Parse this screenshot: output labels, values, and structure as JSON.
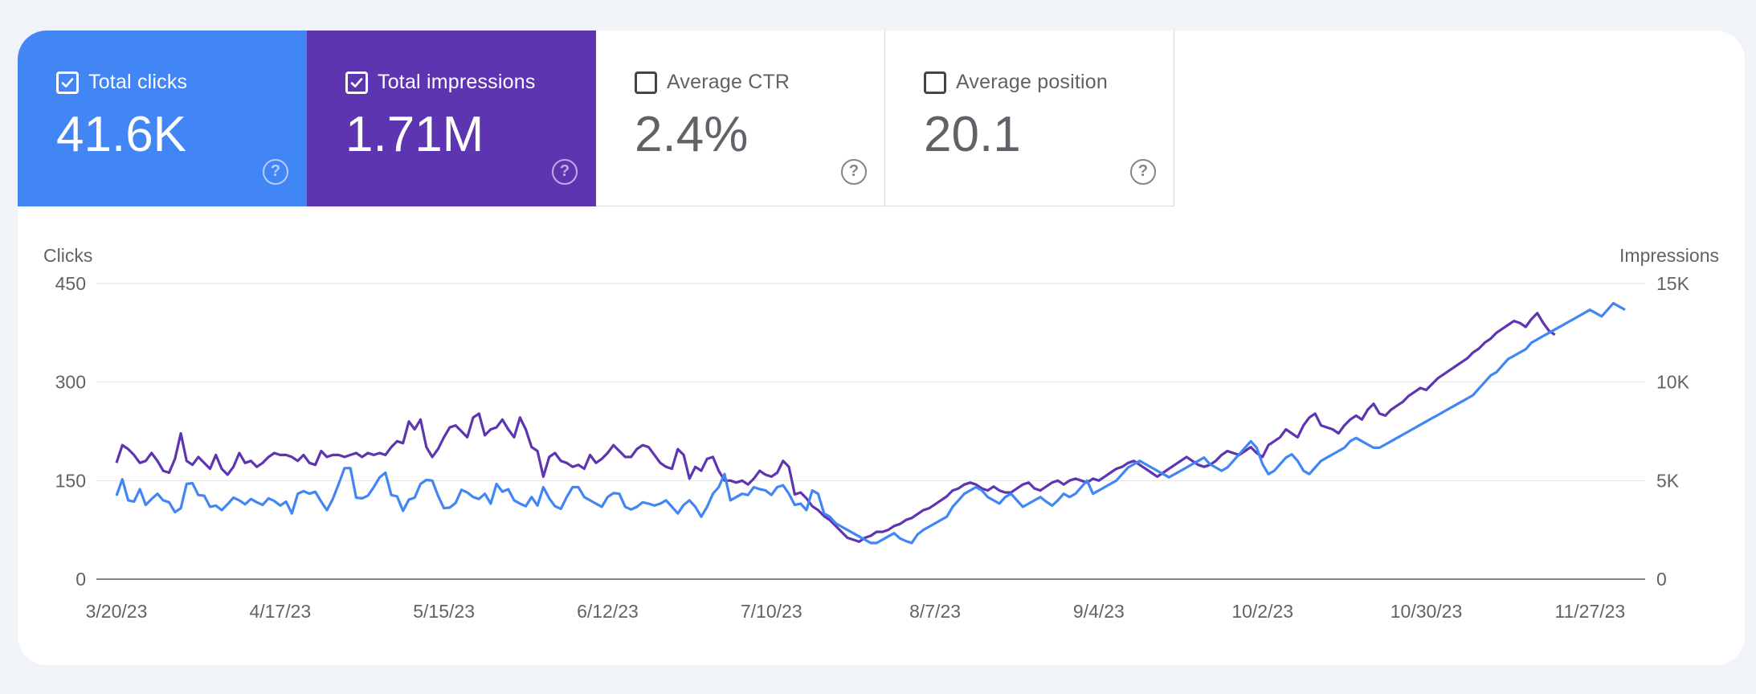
{
  "metrics": [
    {
      "label": "Total clicks",
      "value": "41.6K",
      "checked": true,
      "color": "#4285f4"
    },
    {
      "label": "Total impressions",
      "value": "1.71M",
      "checked": true,
      "color": "#5e35b1"
    },
    {
      "label": "Average CTR",
      "value": "2.4%",
      "checked": false,
      "color": "#ffffff"
    },
    {
      "label": "Average position",
      "value": "20.1",
      "checked": false,
      "color": "#ffffff"
    }
  ],
  "help_glyph": "?",
  "chart_data": {
    "type": "line",
    "left_axis_title": "Clicks",
    "right_axis_title": "Impressions",
    "left_ticks": [
      "0",
      "150",
      "300",
      "450"
    ],
    "right_ticks": [
      "0",
      "5K",
      "10K",
      "15K"
    ],
    "ylim_left": [
      0,
      450
    ],
    "ylim_right": [
      0,
      15000
    ],
    "x_tick_labels": [
      "3/20/23",
      "4/17/23",
      "5/15/23",
      "6/12/23",
      "7/10/23",
      "8/7/23",
      "9/4/23",
      "10/2/23",
      "10/30/23",
      "11/27/23"
    ],
    "x_tick_days": [
      0,
      28,
      56,
      84,
      112,
      140,
      168,
      196,
      224,
      252
    ],
    "grid": true,
    "series": [
      {
        "name": "Total clicks",
        "axis": "left",
        "color": "#4285f4",
        "values": [
          127,
          152,
          120,
          118,
          137,
          113,
          122,
          130,
          120,
          117,
          102,
          108,
          145,
          146,
          128,
          127,
          110,
          112,
          105,
          114,
          124,
          120,
          114,
          122,
          117,
          113,
          123,
          119,
          112,
          118,
          100,
          130,
          134,
          130,
          133,
          118,
          105,
          122,
          145,
          169,
          169,
          124,
          123,
          127,
          140,
          155,
          162,
          128,
          126,
          104,
          121,
          124,
          145,
          151,
          150,
          127,
          108,
          109,
          116,
          136,
          132,
          125,
          122,
          130,
          115,
          145,
          133,
          137,
          120,
          115,
          111,
          125,
          112,
          140,
          123,
          111,
          107,
          125,
          140,
          140,
          125,
          120,
          115,
          110,
          125,
          131,
          130,
          110,
          106,
          110,
          117,
          115,
          112,
          115,
          120,
          110,
          100,
          113,
          120,
          110,
          95,
          110,
          130,
          140,
          160,
          120,
          125,
          130,
          128,
          140,
          137,
          135,
          128,
          140,
          143,
          130,
          113,
          115,
          105,
          135,
          130,
          100,
          95,
          85,
          80,
          75,
          70,
          65,
          60,
          55,
          55,
          60,
          65,
          70,
          62,
          58,
          55,
          68,
          75,
          80,
          85,
          90,
          95,
          110,
          120,
          130,
          135,
          140,
          135,
          125,
          120,
          115,
          125,
          130,
          120,
          110,
          115,
          120,
          125,
          118,
          112,
          120,
          130,
          125,
          130,
          140,
          150,
          130,
          135,
          140,
          145,
          150,
          160,
          170,
          175,
          180,
          175,
          170,
          165,
          160,
          155,
          160,
          165,
          170,
          175,
          180,
          185,
          175,
          170,
          165,
          170,
          180,
          190,
          200,
          210,
          200,
          175,
          160,
          165,
          175,
          185,
          190,
          180,
          165,
          160,
          170,
          180,
          185,
          190,
          195,
          200,
          210,
          215,
          210,
          205,
          200,
          200,
          205,
          210,
          215,
          220,
          225,
          230,
          235,
          240,
          245,
          250,
          255,
          260,
          265,
          270,
          275,
          280,
          290,
          300,
          310,
          315,
          325,
          335,
          340,
          345,
          350,
          360,
          365,
          370,
          375,
          380,
          385,
          390,
          395,
          400,
          405,
          410,
          405,
          400,
          410,
          420,
          415,
          410
        ],
        "display_values": [
          127,
          152,
          120,
          118,
          137,
          113,
          122,
          130,
          120,
          117,
          102,
          108,
          145,
          146,
          128,
          127,
          110,
          112,
          105,
          114,
          124,
          120,
          114,
          122,
          117,
          113,
          123,
          119,
          112,
          118,
          100,
          130,
          134,
          130,
          133,
          118,
          105,
          122,
          145,
          169,
          169,
          124,
          123,
          127,
          140,
          155,
          162,
          128,
          126,
          104,
          121,
          124,
          145,
          151,
          150,
          127,
          108,
          109,
          116,
          136,
          132,
          125,
          122,
          130,
          115,
          145,
          133,
          137,
          120,
          115,
          111,
          125,
          112,
          140,
          123,
          111,
          107,
          125,
          140,
          140,
          125,
          120,
          115,
          110,
          125,
          131,
          130,
          110,
          106,
          110,
          117,
          115,
          112,
          115,
          120,
          110,
          100,
          113,
          120,
          110,
          95,
          110,
          130,
          140,
          160,
          120,
          125,
          130,
          128,
          140,
          137,
          135,
          128,
          140,
          143,
          130,
          113,
          115,
          105,
          135,
          130,
          100,
          95,
          85,
          80,
          75,
          70,
          65,
          60,
          55,
          55,
          60,
          65,
          70,
          62,
          58,
          55,
          68,
          75,
          80,
          85,
          90,
          95,
          110,
          120,
          130,
          135,
          140,
          135,
          125,
          120,
          115,
          125,
          130,
          120,
          110,
          115,
          120,
          125,
          118,
          112,
          120,
          130,
          125,
          130,
          140,
          150,
          130,
          135,
          140,
          145,
          150,
          160,
          170,
          175,
          180,
          175,
          170,
          165,
          160,
          155,
          160,
          165,
          170,
          175,
          180,
          185,
          175,
          170,
          165,
          170,
          180,
          190,
          200,
          210,
          200,
          175,
          160,
          165,
          175,
          185,
          190,
          180,
          165,
          160,
          170,
          180,
          185,
          190,
          195,
          200,
          210,
          215,
          210,
          205,
          200,
          200,
          205,
          210,
          215,
          220,
          225,
          230,
          235,
          240,
          245,
          250,
          255,
          260,
          265,
          270,
          275,
          280,
          290,
          300,
          310,
          315,
          325,
          335,
          340,
          345,
          350,
          360,
          365,
          370,
          375,
          380,
          385,
          390,
          395,
          400,
          405,
          410,
          405,
          400,
          410,
          420,
          415,
          410
        ]
      },
      {
        "name": "Total impressions",
        "axis": "right",
        "color": "#5e35b1",
        "values": [
          5900,
          6800,
          6600,
          6300,
          5900,
          6000,
          6400,
          6000,
          5500,
          5400,
          6100,
          7400,
          6000,
          5800,
          6200,
          5900,
          5600,
          6300,
          5600,
          5300,
          5700,
          6400,
          5900,
          6000,
          5700,
          5900,
          6200,
          6400,
          6300,
          6300,
          6200,
          6000,
          6300,
          5900,
          5800,
          6500,
          6200,
          6300,
          6300,
          6200,
          6300,
          6400,
          6200,
          6400,
          6300,
          6400,
          6300,
          6700,
          7000,
          6900,
          8000,
          7600,
          8100,
          6700,
          6200,
          6600,
          7200,
          7700,
          7800,
          7500,
          7200,
          8200,
          8400,
          7300,
          7600,
          7700,
          8100,
          7600,
          7200,
          8200,
          7600,
          6700,
          6500,
          5200,
          6200,
          6400,
          6000,
          5900,
          5700,
          5800,
          5600,
          6300,
          5900,
          6100,
          6400,
          6800,
          6500,
          6200,
          6200,
          6600,
          6800,
          6700,
          6300,
          5900,
          5700,
          5600,
          6600,
          6300,
          5100,
          5700,
          5500,
          6100,
          6200,
          5500,
          5000,
          5000,
          4900,
          5000,
          4800,
          5100,
          5500,
          5300,
          5200,
          5400,
          6000,
          5700,
          4300,
          4400,
          4100,
          3700,
          3500,
          3200,
          3000,
          2700,
          2400,
          2100,
          2000,
          1900,
          2100,
          2200,
          2400,
          2400,
          2500,
          2700,
          2800,
          3000,
          3100,
          3300,
          3500,
          3600,
          3800,
          4000,
          4200,
          4500,
          4600,
          4800,
          4900,
          4800,
          4600,
          4500,
          4700,
          4500,
          4400,
          4400,
          4600,
          4800,
          4900,
          4600,
          4500,
          4700,
          4900,
          5000,
          4800,
          5000,
          5100,
          5000,
          4900,
          5100,
          5000,
          5200,
          5400,
          5600,
          5700,
          5900,
          6000,
          5800,
          5600,
          5400,
          5200,
          5400,
          5600,
          5800,
          6000,
          6200,
          6000,
          5800,
          5700,
          5800,
          6000,
          6300,
          6500,
          6400,
          6300,
          6500,
          6700,
          6400,
          6200,
          6800,
          7000,
          7200,
          7600,
          7400,
          7200,
          7800,
          8200,
          8400,
          7800,
          7700,
          7600,
          7400,
          7800,
          8100,
          8300,
          8100,
          8600,
          8900,
          8400,
          8300,
          8600,
          8800,
          9000,
          9300,
          9500,
          9700,
          9600,
          9900,
          10200,
          10400,
          10600,
          10800,
          11000,
          11200,
          11500,
          11700,
          12000,
          12200,
          12500,
          12700,
          12900,
          13100,
          13000,
          12800,
          13200,
          13500,
          13000,
          12600,
          12400
        ]
      }
    ]
  }
}
